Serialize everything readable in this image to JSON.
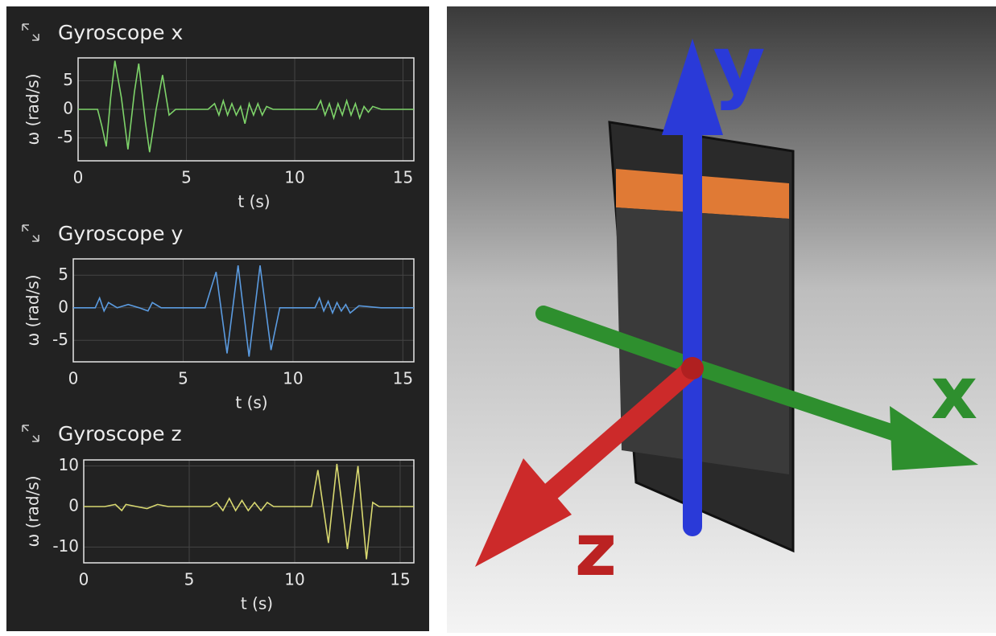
{
  "chart_data": [
    {
      "type": "line",
      "title": "Gyroscope x",
      "xlabel": "t (s)",
      "ylabel": "ω (rad/s)",
      "color": "#7ed46a",
      "grid": true,
      "xlim": [
        0,
        15.5
      ],
      "ylim": [
        -9,
        9
      ],
      "xticks": [
        0,
        5,
        10,
        15
      ],
      "yticks": [
        -5,
        0,
        5
      ],
      "x": [
        0,
        0.9,
        1.1,
        1.3,
        1.5,
        1.7,
        2.0,
        2.3,
        2.6,
        2.8,
        3.1,
        3.3,
        3.6,
        3.9,
        4.2,
        4.5,
        5,
        6,
        6.3,
        6.5,
        6.7,
        6.9,
        7.1,
        7.3,
        7.5,
        7.7,
        7.9,
        8.1,
        8.3,
        8.5,
        8.7,
        9,
        10,
        11,
        11.2,
        11.4,
        11.6,
        11.8,
        12,
        12.2,
        12.4,
        12.6,
        12.8,
        13,
        13.2,
        13.4,
        13.6,
        14,
        15,
        15.5
      ],
      "values": [
        0,
        0,
        -3,
        -6.5,
        2,
        8.5,
        2,
        -7,
        3,
        8,
        -2,
        -7.5,
        0,
        6,
        -1,
        0,
        0,
        0,
        1,
        -1,
        1.5,
        -1,
        1,
        -1,
        0.5,
        -2.5,
        1,
        -1,
        1,
        -1,
        0.5,
        0,
        0,
        0,
        1.5,
        -1,
        1,
        -1.5,
        1,
        -1,
        1.5,
        -1,
        1,
        -1.5,
        0.5,
        -0.5,
        0.5,
        0,
        0,
        0
      ]
    },
    {
      "type": "line",
      "title": "Gyroscope y",
      "xlabel": "t (s)",
      "ylabel": "ω (rad/s)",
      "color": "#5b9be0",
      "grid": true,
      "xlim": [
        0,
        15.5
      ],
      "ylim": [
        -8.3,
        7.5
      ],
      "xticks": [
        0,
        5,
        10,
        15
      ],
      "yticks": [
        -5,
        0,
        5
      ],
      "x": [
        0,
        1,
        1.2,
        1.4,
        1.6,
        2,
        2.5,
        3,
        3.4,
        3.6,
        4,
        5,
        6,
        6.5,
        7,
        7.5,
        8,
        8.5,
        9,
        9.4,
        10,
        11,
        11.2,
        11.4,
        11.6,
        11.8,
        12,
        12.2,
        12.4,
        12.6,
        13,
        14,
        15.5
      ],
      "values": [
        0,
        0,
        1.5,
        -0.5,
        0.8,
        0,
        0.5,
        0,
        -0.5,
        0.8,
        0,
        0,
        0,
        5.5,
        -7,
        6.5,
        -7.5,
        6.5,
        -6.5,
        0,
        0,
        0,
        1.5,
        -0.5,
        1,
        -0.8,
        0.8,
        -0.5,
        0.5,
        -0.8,
        0.3,
        0,
        0
      ]
    },
    {
      "type": "line",
      "title": "Gyroscope z",
      "xlabel": "t (s)",
      "ylabel": "ω (rad/s)",
      "color": "#d8d870",
      "grid": true,
      "xlim": [
        0,
        15.65
      ],
      "ylim": [
        -13.9,
        11.5
      ],
      "xticks": [
        0,
        5,
        10,
        15
      ],
      "yticks": [
        -10,
        0,
        10
      ],
      "x": [
        0,
        1,
        1.5,
        1.8,
        2,
        2.5,
        3,
        3.5,
        4,
        5,
        6,
        6.3,
        6.6,
        6.9,
        7.2,
        7.5,
        7.8,
        8.1,
        8.4,
        8.7,
        9,
        10,
        10.8,
        11.1,
        11.6,
        12,
        12.5,
        13,
        13.4,
        13.7,
        14,
        15,
        15.65
      ],
      "values": [
        0,
        0,
        0.5,
        -1,
        0.5,
        0,
        -0.5,
        0.5,
        0,
        0,
        0,
        1,
        -1,
        2,
        -1,
        1.5,
        -1,
        1,
        -1,
        1,
        0,
        0,
        0,
        9,
        -9,
        10.5,
        -10.5,
        10,
        -13,
        1,
        0,
        0,
        0
      ]
    }
  ],
  "illustration": {
    "axis_x": "x",
    "axis_y": "y",
    "axis_z": "z"
  }
}
